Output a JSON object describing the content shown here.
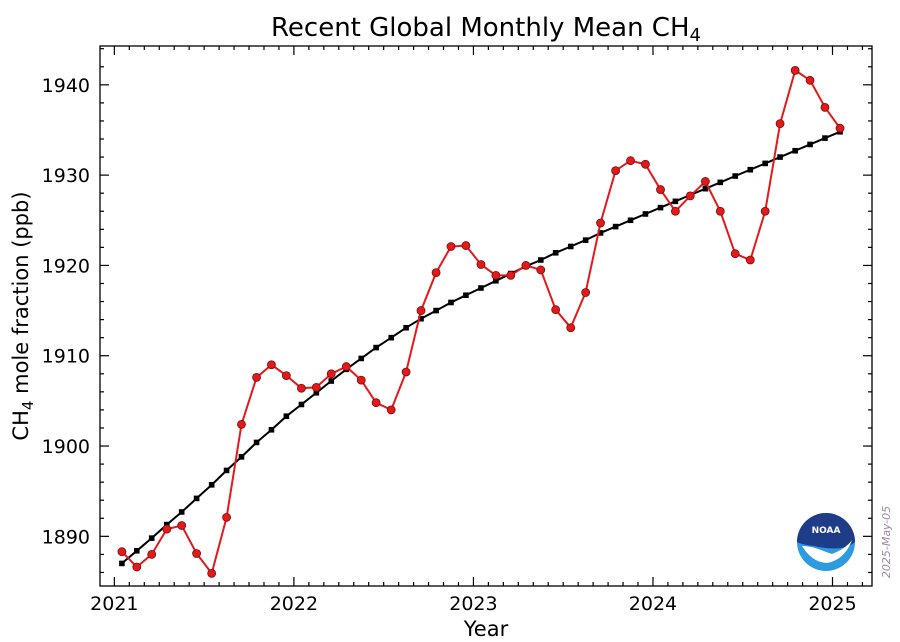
{
  "chart_data": {
    "type": "line",
    "title": "Recent Global Monthly Mean CH",
    "title_subscript": "4",
    "xlabel": "Year",
    "ylabel": "CH",
    "ylabel_subscript": "4",
    "ylabel_rest": " mole fraction (ppb)",
    "xlim": [
      2020.92,
      2025.22
    ],
    "ylim": [
      1884.5,
      1944.3
    ],
    "x_ticks": [
      2021,
      2022,
      2023,
      2024,
      2025
    ],
    "x_tick_labels": [
      "2021",
      "2022",
      "2023",
      "2024",
      "2025"
    ],
    "y_ticks": [
      1890,
      1900,
      1910,
      1920,
      1930,
      1940
    ],
    "y_tick_labels": [
      "1890",
      "1900",
      "1910",
      "1920",
      "1930",
      "1940"
    ],
    "grid": false,
    "series": [
      {
        "kind": "monthly-mean",
        "color": "#e31a1c",
        "marker": "circle",
        "x": [
          2021.042,
          2021.125,
          2021.208,
          2021.292,
          2021.375,
          2021.458,
          2021.542,
          2021.625,
          2021.708,
          2021.792,
          2021.875,
          2021.958,
          2022.042,
          2022.125,
          2022.208,
          2022.292,
          2022.375,
          2022.458,
          2022.542,
          2022.625,
          2022.708,
          2022.792,
          2022.875,
          2022.958,
          2023.042,
          2023.125,
          2023.208,
          2023.292,
          2023.375,
          2023.458,
          2023.542,
          2023.625,
          2023.708,
          2023.792,
          2023.875,
          2023.958,
          2024.042,
          2024.125,
          2024.208,
          2024.292,
          2024.375,
          2024.458,
          2024.542,
          2024.625,
          2024.708,
          2024.792,
          2024.875,
          2024.958,
          2025.042
        ],
        "y": [
          1888.3,
          1886.6,
          1888.0,
          1890.8,
          1891.2,
          1888.1,
          1885.9,
          1892.1,
          1902.4,
          1907.6,
          1909.0,
          1907.8,
          1906.4,
          1906.5,
          1908.0,
          1908.8,
          1907.3,
          1904.8,
          1904.0,
          1908.2,
          1915.0,
          1919.2,
          1922.1,
          1922.2,
          1920.1,
          1918.9,
          1918.9,
          1920.0,
          1919.5,
          1915.1,
          1913.1,
          1917.0,
          1924.7,
          1930.5,
          1931.6,
          1931.2,
          1928.4,
          1926.0,
          1927.7,
          1929.3,
          1926.0,
          1921.3,
          1920.6,
          1926.0,
          1935.7,
          1941.6,
          1940.5,
          1937.5,
          1935.2
        ]
      },
      {
        "kind": "trend",
        "color": "#000000",
        "marker": "square",
        "x": [
          2021.042,
          2021.125,
          2021.208,
          2021.292,
          2021.375,
          2021.458,
          2021.542,
          2021.625,
          2021.708,
          2021.792,
          2021.875,
          2021.958,
          2022.042,
          2022.125,
          2022.208,
          2022.292,
          2022.375,
          2022.458,
          2022.542,
          2022.625,
          2022.708,
          2022.792,
          2022.875,
          2022.958,
          2023.042,
          2023.125,
          2023.208,
          2023.292,
          2023.375,
          2023.458,
          2023.542,
          2023.625,
          2023.708,
          2023.792,
          2023.875,
          2023.958,
          2024.042,
          2024.125,
          2024.208,
          2024.292,
          2024.375,
          2024.458,
          2024.542,
          2024.625,
          2024.708,
          2024.792,
          2024.875,
          2024.958,
          2025.042
        ],
        "y": [
          1887.0,
          1888.4,
          1889.8,
          1891.3,
          1892.7,
          1894.2,
          1895.7,
          1897.3,
          1898.8,
          1900.4,
          1901.8,
          1903.3,
          1904.6,
          1905.9,
          1907.2,
          1908.5,
          1909.7,
          1910.9,
          1912.0,
          1913.1,
          1914.1,
          1915.0,
          1915.9,
          1916.7,
          1917.5,
          1918.3,
          1919.1,
          1919.9,
          1920.6,
          1921.4,
          1922.1,
          1922.8,
          1923.6,
          1924.3,
          1925.0,
          1925.7,
          1926.4,
          1927.1,
          1927.8,
          1928.5,
          1929.2,
          1929.9,
          1930.6,
          1931.3,
          1932.0,
          1932.7,
          1933.4,
          1934.1,
          1934.8
        ]
      }
    ]
  },
  "logo": {
    "text": "NOAA",
    "colors": {
      "blue_dark": "#1f3c88",
      "blue_light": "#2e9be0",
      "white": "#ffffff"
    }
  },
  "date_stamp": "2025-May-05"
}
